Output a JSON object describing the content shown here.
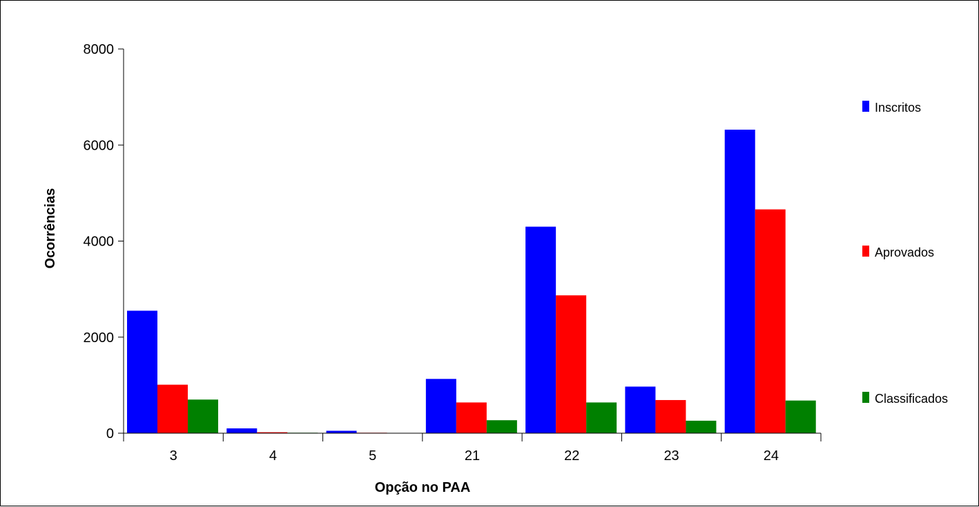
{
  "chart_data": {
    "type": "bar",
    "xlabel": "Opção no PAA",
    "ylabel": "Ocorrências",
    "ylim": [
      0,
      8000
    ],
    "yticks": [
      "0",
      "2000",
      "4000",
      "6000",
      "8000"
    ],
    "grid": false,
    "legend_position": "right",
    "categories": [
      "3",
      "4",
      "5",
      "21",
      "22",
      "23",
      "24"
    ],
    "series": [
      {
        "name": "Inscritos",
        "color": "#0000ff",
        "values": [
          2550,
          100,
          50,
          1130,
          4300,
          970,
          6320
        ]
      },
      {
        "name": "Aprovados",
        "color": "#ff0000",
        "values": [
          1010,
          20,
          10,
          640,
          2870,
          690,
          4660
        ]
      },
      {
        "name": "Classificados",
        "color": "#008000",
        "values": [
          700,
          10,
          0,
          270,
          640,
          260,
          680
        ]
      }
    ]
  }
}
